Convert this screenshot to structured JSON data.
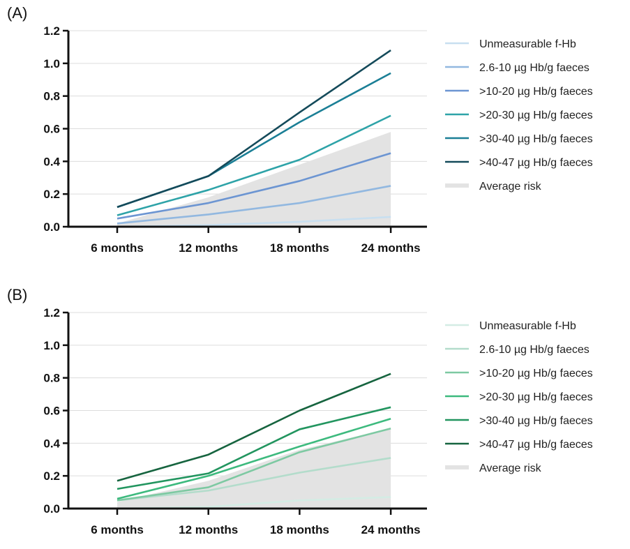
{
  "chart_data": [
    {
      "panel_label": "(A)",
      "type": "line",
      "categories": [
        "6 months",
        "12 months",
        "18 months",
        "24 months"
      ],
      "yticks": [
        "0.0",
        "0.2",
        "0.4",
        "0.6",
        "0.8",
        "1.0",
        "1.2"
      ],
      "ylim": [
        0,
        1.2
      ],
      "grid": true,
      "legend_position": "right",
      "average_risk": {
        "name": "Average risk",
        "color": "#e3e3e3",
        "values": [
          0.02,
          0.18,
          0.38,
          0.58
        ]
      },
      "series": [
        {
          "name": "Unmeasurable f-Hb",
          "color": "#c8dff0",
          "values": [
            0.0,
            0.01,
            0.03,
            0.06
          ]
        },
        {
          "name": "2.6-10 µg Hb/g faeces",
          "color": "#92b8e0",
          "values": [
            0.02,
            0.075,
            0.145,
            0.25
          ]
        },
        {
          "name": ">10-20 µg Hb/g faeces",
          "color": "#6c95d2",
          "values": [
            0.05,
            0.145,
            0.28,
            0.45
          ]
        },
        {
          "name": ">20-30 µg Hb/g faeces",
          "color": "#2ea3a8",
          "values": [
            0.07,
            0.225,
            0.41,
            0.68
          ]
        },
        {
          "name": ">30-40 µg Hb/g faeces",
          "color": "#1b7f96",
          "values": [
            0.12,
            0.31,
            0.64,
            0.94
          ]
        },
        {
          "name": ">40-47 µg Hb/g faeces",
          "color": "#144a5a",
          "values": [
            0.12,
            0.31,
            0.7,
            1.08
          ]
        }
      ]
    },
    {
      "panel_label": "(B)",
      "type": "line",
      "categories": [
        "6 months",
        "12 months",
        "18 months",
        "24 months"
      ],
      "yticks": [
        "0.0",
        "0.2",
        "0.4",
        "0.6",
        "0.8",
        "1.0",
        "1.2"
      ],
      "ylim": [
        0,
        1.2
      ],
      "grid": true,
      "legend_position": "right",
      "average_risk": {
        "name": "Average risk",
        "color": "#e3e3e3",
        "values": [
          0.04,
          0.17,
          0.36,
          0.49
        ]
      },
      "series": [
        {
          "name": "Unmeasurable f-Hb",
          "color": "#d4ece4",
          "values": [
            0.0,
            0.01,
            0.05,
            0.07
          ]
        },
        {
          "name": "2.6-10 µg Hb/g faeces",
          "color": "#b3dccb",
          "values": [
            0.05,
            0.11,
            0.22,
            0.31
          ]
        },
        {
          "name": ">10-20 µg Hb/g faeces",
          "color": "#7dc9a2",
          "values": [
            0.05,
            0.13,
            0.345,
            0.49
          ]
        },
        {
          "name": ">20-30 µg Hb/g faeces",
          "color": "#3dba7e",
          "values": [
            0.06,
            0.2,
            0.38,
            0.55
          ]
        },
        {
          "name": ">30-40 µg Hb/g faeces",
          "color": "#22955f",
          "values": [
            0.12,
            0.215,
            0.485,
            0.62
          ]
        },
        {
          "name": ">40-47 µg Hb/g faeces",
          "color": "#16643f",
          "values": [
            0.17,
            0.33,
            0.6,
            0.825
          ]
        }
      ]
    }
  ]
}
